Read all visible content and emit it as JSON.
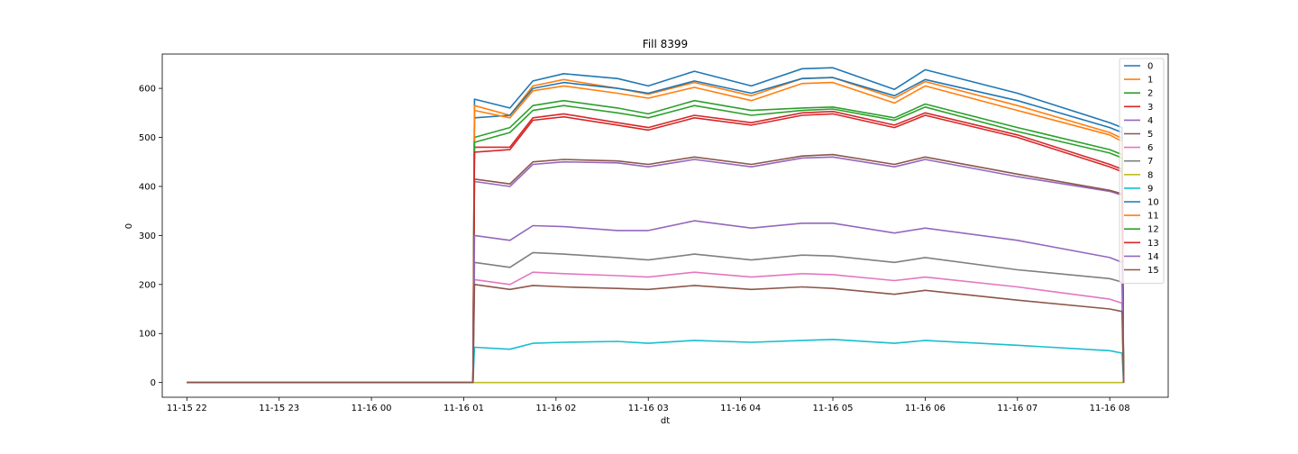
{
  "chart_data": {
    "type": "line",
    "title": "Fill 8399",
    "xlabel": "dt",
    "ylabel": "0",
    "xlim": [
      "2024-11-15 21:44",
      "2024-11-16 08:38"
    ],
    "ylim": [
      -30,
      670
    ],
    "xticks": [
      "11-15 22",
      "11-15 23",
      "11-16 00",
      "11-16 01",
      "11-16 02",
      "11-16 03",
      "11-16 04",
      "11-16 05",
      "11-16 06",
      "11-16 07",
      "11-16 08"
    ],
    "yticks": [
      "0",
      "100",
      "200",
      "300",
      "400",
      "500",
      "600"
    ],
    "grid": false,
    "legend_position": "top-right",
    "colors": [
      "#1f77b4",
      "#ff7f0e",
      "#2ca02c",
      "#d62728",
      "#9467bd",
      "#8c564b",
      "#e377c2",
      "#7f7f7f",
      "#bcbd22",
      "#17becf"
    ],
    "series": [
      {
        "name": "0",
        "x": [
          "2024-11-15 22:00",
          "2024-11-16 01:06",
          "2024-11-16 01:07",
          "2024-11-16 01:30",
          "2024-11-16 01:45",
          "2024-11-16 02:05",
          "2024-11-16 02:40",
          "2024-11-16 03:00",
          "2024-11-16 03:30",
          "2024-11-16 04:07",
          "2024-11-16 04:40",
          "2024-11-16 05:00",
          "2024-11-16 05:40",
          "2024-11-16 06:00",
          "2024-11-16 07:00",
          "2024-11-16 08:00",
          "2024-11-16 08:08",
          "2024-11-16 08:09"
        ],
        "y": [
          0,
          0,
          578,
          560,
          615,
          630,
          620,
          605,
          635,
          605,
          640,
          642,
          598,
          638,
          590,
          530,
          520,
          0
        ]
      },
      {
        "name": "1",
        "x": [
          "2024-11-15 22:00",
          "2024-11-16 01:06",
          "2024-11-16 01:07",
          "2024-11-16 01:30",
          "2024-11-16 01:45",
          "2024-11-16 02:05",
          "2024-11-16 02:40",
          "2024-11-16 03:00",
          "2024-11-16 03:30",
          "2024-11-16 04:07",
          "2024-11-16 04:40",
          "2024-11-16 05:00",
          "2024-11-16 05:40",
          "2024-11-16 06:00",
          "2024-11-16 07:00",
          "2024-11-16 08:00",
          "2024-11-16 08:08",
          "2024-11-16 08:09"
        ],
        "y": [
          0,
          0,
          565,
          545,
          605,
          618,
          600,
          588,
          612,
          585,
          620,
          622,
          580,
          614,
          565,
          510,
          498,
          0
        ]
      },
      {
        "name": "2",
        "x": [
          "2024-11-15 22:00",
          "2024-11-16 01:06",
          "2024-11-16 01:07",
          "2024-11-16 01:30",
          "2024-11-16 01:45",
          "2024-11-16 02:05",
          "2024-11-16 02:40",
          "2024-11-16 03:00",
          "2024-11-16 03:30",
          "2024-11-16 04:07",
          "2024-11-16 04:40",
          "2024-11-16 05:00",
          "2024-11-16 05:40",
          "2024-11-16 06:00",
          "2024-11-16 07:00",
          "2024-11-16 08:00",
          "2024-11-16 08:08",
          "2024-11-16 08:09"
        ],
        "y": [
          0,
          0,
          500,
          520,
          565,
          575,
          560,
          548,
          575,
          555,
          560,
          562,
          540,
          568,
          520,
          475,
          465,
          0
        ]
      },
      {
        "name": "3",
        "x": [
          "2024-11-15 22:00",
          "2024-11-16 01:06",
          "2024-11-16 01:07",
          "2024-11-16 01:30",
          "2024-11-16 01:45",
          "2024-11-16 02:05",
          "2024-11-16 02:40",
          "2024-11-16 03:00",
          "2024-11-16 03:30",
          "2024-11-16 04:07",
          "2024-11-16 04:40",
          "2024-11-16 05:00",
          "2024-11-16 05:40",
          "2024-11-16 06:00",
          "2024-11-16 07:00",
          "2024-11-16 08:00",
          "2024-11-16 08:08",
          "2024-11-16 08:09"
        ],
        "y": [
          0,
          0,
          480,
          480,
          540,
          548,
          530,
          520,
          545,
          530,
          550,
          553,
          525,
          550,
          505,
          445,
          435,
          0
        ]
      },
      {
        "name": "4",
        "x": [
          "2024-11-15 22:00",
          "2024-11-16 01:06",
          "2024-11-16 01:07",
          "2024-11-16 01:30",
          "2024-11-16 01:45",
          "2024-11-16 02:05",
          "2024-11-16 02:40",
          "2024-11-16 03:00",
          "2024-11-16 03:30",
          "2024-11-16 04:07",
          "2024-11-16 04:40",
          "2024-11-16 05:00",
          "2024-11-16 05:40",
          "2024-11-16 06:00",
          "2024-11-16 07:00",
          "2024-11-16 08:00",
          "2024-11-16 08:08",
          "2024-11-16 08:09"
        ],
        "y": [
          0,
          0,
          410,
          400,
          445,
          450,
          448,
          440,
          455,
          440,
          458,
          460,
          440,
          455,
          420,
          390,
          382,
          0
        ]
      },
      {
        "name": "5",
        "x": [
          "2024-11-15 22:00",
          "2024-11-16 01:06",
          "2024-11-16 01:07",
          "2024-11-16 01:30",
          "2024-11-16 01:45",
          "2024-11-16 02:05",
          "2024-11-16 02:40",
          "2024-11-16 03:00",
          "2024-11-16 03:30",
          "2024-11-16 04:07",
          "2024-11-16 04:40",
          "2024-11-16 05:00",
          "2024-11-16 05:40",
          "2024-11-16 06:00",
          "2024-11-16 07:00",
          "2024-11-16 08:00",
          "2024-11-16 08:08",
          "2024-11-16 08:09"
        ],
        "y": [
          0,
          0,
          415,
          405,
          450,
          455,
          452,
          445,
          460,
          445,
          462,
          465,
          445,
          460,
          425,
          392,
          385,
          0
        ]
      },
      {
        "name": "6",
        "x": [
          "2024-11-15 22:00",
          "2024-11-16 01:06",
          "2024-11-16 01:07",
          "2024-11-16 01:30",
          "2024-11-16 01:45",
          "2024-11-16 02:05",
          "2024-11-16 02:40",
          "2024-11-16 03:00",
          "2024-11-16 03:30",
          "2024-11-16 04:07",
          "2024-11-16 04:40",
          "2024-11-16 05:00",
          "2024-11-16 05:40",
          "2024-11-16 06:00",
          "2024-11-16 07:00",
          "2024-11-16 08:00",
          "2024-11-16 08:08",
          "2024-11-16 08:09"
        ],
        "y": [
          0,
          0,
          210,
          200,
          225,
          222,
          218,
          215,
          225,
          215,
          222,
          220,
          208,
          215,
          195,
          170,
          162,
          0
        ]
      },
      {
        "name": "7",
        "x": [
          "2024-11-15 22:00",
          "2024-11-16 01:06",
          "2024-11-16 01:07",
          "2024-11-16 01:30",
          "2024-11-16 01:45",
          "2024-11-16 02:05",
          "2024-11-16 02:40",
          "2024-11-16 03:00",
          "2024-11-16 03:30",
          "2024-11-16 04:07",
          "2024-11-16 04:40",
          "2024-11-16 05:00",
          "2024-11-16 05:40",
          "2024-11-16 06:00",
          "2024-11-16 07:00",
          "2024-11-16 08:00",
          "2024-11-16 08:08",
          "2024-11-16 08:09"
        ],
        "y": [
          0,
          0,
          245,
          235,
          265,
          262,
          255,
          250,
          262,
          250,
          260,
          258,
          245,
          255,
          230,
          212,
          205,
          0
        ]
      },
      {
        "name": "8",
        "x": [
          "2024-11-15 22:00",
          "2024-11-16 08:09"
        ],
        "y": [
          0,
          0
        ]
      },
      {
        "name": "9",
        "x": [
          "2024-11-15 22:00",
          "2024-11-16 01:06",
          "2024-11-16 01:07",
          "2024-11-16 01:30",
          "2024-11-16 01:45",
          "2024-11-16 02:05",
          "2024-11-16 02:40",
          "2024-11-16 03:00",
          "2024-11-16 03:30",
          "2024-11-16 04:07",
          "2024-11-16 04:40",
          "2024-11-16 05:00",
          "2024-11-16 05:40",
          "2024-11-16 06:00",
          "2024-11-16 07:00",
          "2024-11-16 08:00",
          "2024-11-16 08:08",
          "2024-11-16 08:09"
        ],
        "y": [
          0,
          0,
          72,
          68,
          80,
          82,
          84,
          80,
          86,
          82,
          86,
          88,
          80,
          86,
          76,
          65,
          60,
          0
        ]
      },
      {
        "name": "10",
        "x": [
          "2024-11-15 22:00",
          "2024-11-16 01:06",
          "2024-11-16 01:07",
          "2024-11-16 01:30",
          "2024-11-16 01:45",
          "2024-11-16 02:05",
          "2024-11-16 02:40",
          "2024-11-16 03:00",
          "2024-11-16 03:30",
          "2024-11-16 04:07",
          "2024-11-16 04:40",
          "2024-11-16 05:00",
          "2024-11-16 05:40",
          "2024-11-16 06:00",
          "2024-11-16 07:00",
          "2024-11-16 08:00",
          "2024-11-16 08:08",
          "2024-11-16 08:09"
        ],
        "y": [
          0,
          0,
          540,
          545,
          600,
          612,
          600,
          590,
          615,
          590,
          620,
          622,
          585,
          618,
          575,
          520,
          510,
          0
        ]
      },
      {
        "name": "11",
        "x": [
          "2024-11-15 22:00",
          "2024-11-16 01:06",
          "2024-11-16 01:07",
          "2024-11-16 01:30",
          "2024-11-16 01:45",
          "2024-11-16 02:05",
          "2024-11-16 02:40",
          "2024-11-16 03:00",
          "2024-11-16 03:30",
          "2024-11-16 04:07",
          "2024-11-16 04:40",
          "2024-11-16 05:00",
          "2024-11-16 05:40",
          "2024-11-16 06:00",
          "2024-11-16 07:00",
          "2024-11-16 08:00",
          "2024-11-16 08:08",
          "2024-11-16 08:09"
        ],
        "y": [
          0,
          0,
          555,
          540,
          595,
          605,
          590,
          580,
          602,
          575,
          610,
          612,
          570,
          605,
          555,
          505,
          492,
          0
        ]
      },
      {
        "name": "12",
        "x": [
          "2024-11-15 22:00",
          "2024-11-16 01:06",
          "2024-11-16 01:07",
          "2024-11-16 01:30",
          "2024-11-16 01:45",
          "2024-11-16 02:05",
          "2024-11-16 02:40",
          "2024-11-16 03:00",
          "2024-11-16 03:30",
          "2024-11-16 04:07",
          "2024-11-16 04:40",
          "2024-11-16 05:00",
          "2024-11-16 05:40",
          "2024-11-16 06:00",
          "2024-11-16 07:00",
          "2024-11-16 08:00",
          "2024-11-16 08:08",
          "2024-11-16 08:09"
        ],
        "y": [
          0,
          0,
          490,
          510,
          555,
          565,
          550,
          540,
          565,
          545,
          555,
          558,
          535,
          562,
          512,
          468,
          458,
          0
        ]
      },
      {
        "name": "13",
        "x": [
          "2024-11-15 22:00",
          "2024-11-16 01:06",
          "2024-11-16 01:07",
          "2024-11-16 01:30",
          "2024-11-16 01:45",
          "2024-11-16 02:05",
          "2024-11-16 02:40",
          "2024-11-16 03:00",
          "2024-11-16 03:30",
          "2024-11-16 04:07",
          "2024-11-16 04:40",
          "2024-11-16 05:00",
          "2024-11-16 05:40",
          "2024-11-16 06:00",
          "2024-11-16 07:00",
          "2024-11-16 08:00",
          "2024-11-16 08:08",
          "2024-11-16 08:09"
        ],
        "y": [
          0,
          0,
          470,
          475,
          535,
          542,
          525,
          515,
          540,
          525,
          545,
          548,
          520,
          545,
          500,
          440,
          430,
          0
        ]
      },
      {
        "name": "14",
        "x": [
          "2024-11-15 22:00",
          "2024-11-16 01:06",
          "2024-11-16 01:07",
          "2024-11-16 01:30",
          "2024-11-16 01:45",
          "2024-11-16 02:05",
          "2024-11-16 02:40",
          "2024-11-16 03:00",
          "2024-11-16 03:30",
          "2024-11-16 04:07",
          "2024-11-16 04:40",
          "2024-11-16 05:00",
          "2024-11-16 05:40",
          "2024-11-16 06:00",
          "2024-11-16 07:00",
          "2024-11-16 08:00",
          "2024-11-16 08:08",
          "2024-11-16 08:09"
        ],
        "y": [
          0,
          0,
          300,
          290,
          320,
          318,
          310,
          310,
          330,
          315,
          325,
          325,
          305,
          315,
          290,
          255,
          245,
          0
        ]
      },
      {
        "name": "15",
        "x": [
          "2024-11-15 22:00",
          "2024-11-16 01:06",
          "2024-11-16 01:07",
          "2024-11-16 01:30",
          "2024-11-16 01:45",
          "2024-11-16 02:05",
          "2024-11-16 02:40",
          "2024-11-16 03:00",
          "2024-11-16 03:30",
          "2024-11-16 04:07",
          "2024-11-16 04:40",
          "2024-11-16 05:00",
          "2024-11-16 05:40",
          "2024-11-16 06:00",
          "2024-11-16 07:00",
          "2024-11-16 08:00",
          "2024-11-16 08:08",
          "2024-11-16 08:09"
        ],
        "y": [
          0,
          0,
          200,
          190,
          198,
          195,
          192,
          190,
          198,
          190,
          195,
          192,
          180,
          188,
          168,
          150,
          145,
          0
        ]
      }
    ]
  }
}
